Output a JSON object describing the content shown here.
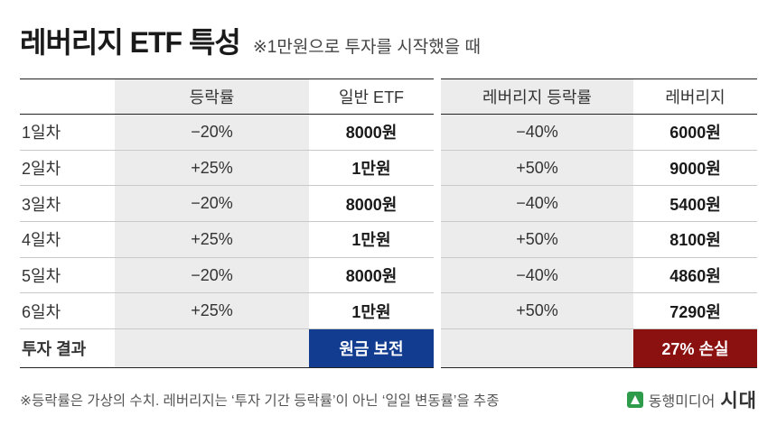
{
  "header": {
    "title": "레버리지 ETF 특성",
    "subtitle": "※1만원으로 투자를 시작했을 때"
  },
  "left_table": {
    "headers": [
      "",
      "등락률",
      "일반 ETF"
    ],
    "rows": [
      {
        "day": "1일차",
        "rate": "−20%",
        "value": "8000원"
      },
      {
        "day": "2일차",
        "rate": "+25%",
        "value": "1만원"
      },
      {
        "day": "3일차",
        "rate": "−20%",
        "value": "8000원"
      },
      {
        "day": "4일차",
        "rate": "+25%",
        "value": "1만원"
      },
      {
        "day": "5일차",
        "rate": "−20%",
        "value": "8000원"
      },
      {
        "day": "6일차",
        "rate": "+25%",
        "value": "1만원"
      }
    ],
    "result_label": "투자 결과",
    "result_value": "원금 보전"
  },
  "right_table": {
    "headers": [
      "레버리지 등락률",
      "레버리지"
    ],
    "rows": [
      {
        "rate": "−40%",
        "value": "6000원"
      },
      {
        "rate": "+50%",
        "value": "9000원"
      },
      {
        "rate": "−40%",
        "value": "5400원"
      },
      {
        "rate": "+50%",
        "value": "8100원"
      },
      {
        "rate": "−40%",
        "value": "4860원"
      },
      {
        "rate": "+50%",
        "value": "7290원"
      }
    ],
    "result_value": "27% 손실"
  },
  "colors": {
    "result_blue": "#123c8f",
    "result_red": "#8b1010",
    "shaded_column": "#ececec",
    "brand_green": "#2e9c4a"
  },
  "footnote": "※등락률은 가상의 수치. 레버리지는 ‘투자 기간 등락률’이 아닌 ‘일일 변동률’을 추종",
  "brand": {
    "icon": "dongheng-logo-icon",
    "name": "동행미디어",
    "mark": "시대"
  }
}
